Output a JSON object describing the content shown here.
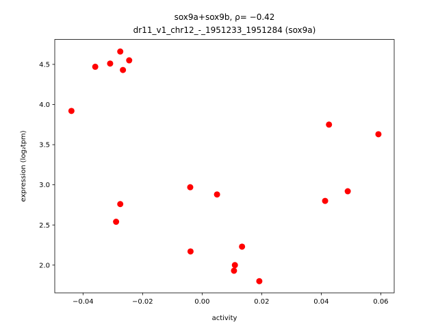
{
  "chart_data": {
    "type": "scatter",
    "title_line1": "sox9a+sox9b, ρ= −0.42",
    "title_line2": "dr11_v1_chr12_-_1951233_1951284 (sox9a)",
    "xlabel": "activity",
    "ylabel": "expression (log₂tpm)",
    "xlim": [
      -0.0495,
      0.0645
    ],
    "ylim": [
      1.655,
      4.81
    ],
    "grid": false,
    "marker_color": "#ff0000",
    "x_ticks": [
      -0.04,
      -0.02,
      0.0,
      0.02,
      0.04,
      0.06
    ],
    "x_tick_labels": [
      "−0.04",
      "−0.02",
      "0.00",
      "0.02",
      "0.04",
      "0.06"
    ],
    "y_ticks": [
      2.0,
      2.5,
      3.0,
      3.5,
      4.0,
      4.5
    ],
    "y_tick_labels": [
      "2.0",
      "2.5",
      "3.0",
      "3.5",
      "4.0",
      "4.5"
    ],
    "points": [
      {
        "x": -0.0439,
        "y": 3.92
      },
      {
        "x": -0.0359,
        "y": 4.47
      },
      {
        "x": -0.0309,
        "y": 4.51
      },
      {
        "x": -0.0275,
        "y": 4.66
      },
      {
        "x": -0.0266,
        "y": 4.43
      },
      {
        "x": -0.0245,
        "y": 4.55
      },
      {
        "x": -0.0275,
        "y": 2.76
      },
      {
        "x": -0.0289,
        "y": 2.54
      },
      {
        "x": -0.004,
        "y": 2.97
      },
      {
        "x": -0.0039,
        "y": 2.17
      },
      {
        "x": 0.005,
        "y": 2.88
      },
      {
        "x": 0.0134,
        "y": 2.23
      },
      {
        "x": 0.011,
        "y": 2.0
      },
      {
        "x": 0.0107,
        "y": 1.93
      },
      {
        "x": 0.0192,
        "y": 1.8
      },
      {
        "x": 0.0426,
        "y": 3.75
      },
      {
        "x": 0.0413,
        "y": 2.8
      },
      {
        "x": 0.0489,
        "y": 2.92
      },
      {
        "x": 0.0592,
        "y": 3.63
      }
    ]
  }
}
